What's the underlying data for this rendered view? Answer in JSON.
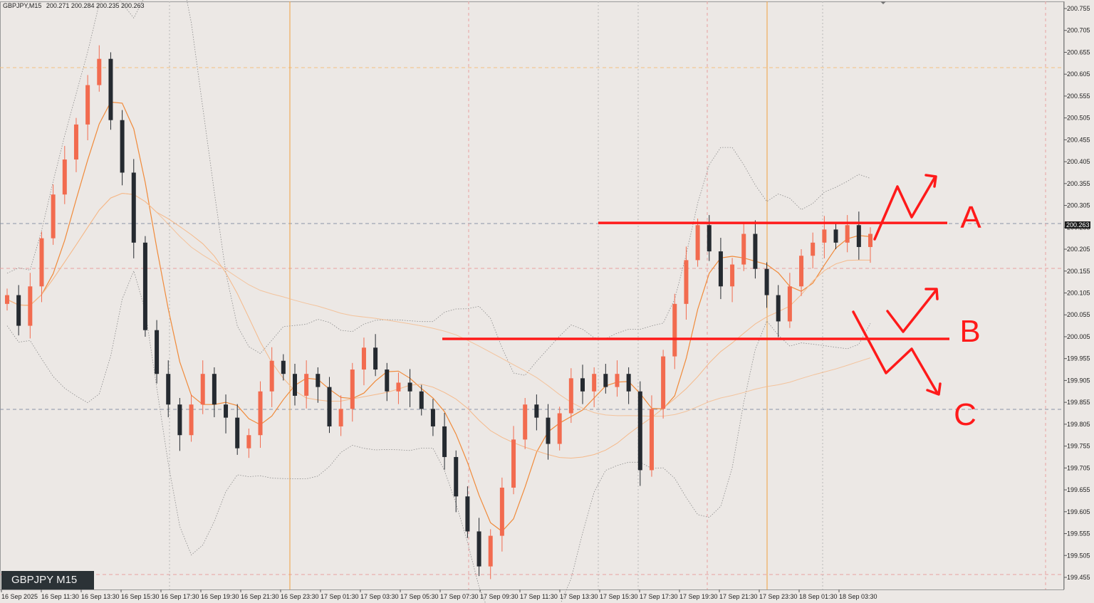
{
  "header": {
    "symbol_tf": "GBPJPY,M15",
    "ohlc": "200.271 200.284 200.235 200.263"
  },
  "symbol_box": "GBPJPY M15",
  "current_price_label": "200.263",
  "annotations": {
    "labels": [
      "A",
      "B",
      "C"
    ],
    "levels": [
      200.265,
      200.0
    ],
    "line_color": "#ff1a1a"
  },
  "colors": {
    "bull": "#f26b4f",
    "bear": "#252a30",
    "ma_fast": "#f08a3a",
    "ma_slow": "#f5b98a",
    "bb": "#8a8a8a",
    "annotation": "#ff1a1a",
    "session_line": "#f0a040"
  },
  "chart_data": {
    "type": "candlestick",
    "instrument": "GBPJPY",
    "timeframe": "M15",
    "ylim": [
      199.45,
      200.77
    ],
    "y_ticks": [
      "200.755",
      "200.705",
      "200.655",
      "200.605",
      "200.555",
      "200.505",
      "200.455",
      "200.405",
      "200.355",
      "200.305",
      "200.255",
      "200.205",
      "200.155",
      "200.105",
      "200.055",
      "200.005",
      "199.955",
      "199.905",
      "199.855",
      "199.805",
      "199.755",
      "199.705",
      "199.655",
      "199.605",
      "199.555",
      "199.505",
      "199.455"
    ],
    "x_ticks": [
      "16 Sep 2025",
      "16 Sep 11:30",
      "16 Sep 13:30",
      "16 Sep 15:30",
      "16 Sep 17:30",
      "16 Sep 19:30",
      "16 Sep 21:30",
      "16 Sep 23:30",
      "17 Sep 01:30",
      "17 Sep 03:30",
      "17 Sep 05:30",
      "17 Sep 07:30",
      "17 Sep 09:30",
      "17 Sep 11:30",
      "17 Sep 13:30",
      "17 Sep 15:30",
      "17 Sep 17:30",
      "17 Sep 19:30",
      "17 Sep 21:30",
      "17 Sep 23:30",
      "18 Sep 01:30",
      "18 Sep 03:30"
    ],
    "candles_path": [
      [
        200.1,
        -6
      ],
      [
        200.03,
        8
      ],
      [
        200.12,
        7
      ],
      [
        200.23,
        8
      ],
      [
        200.33,
        7
      ],
      [
        200.41,
        8
      ],
      [
        200.49,
        9
      ],
      [
        200.58,
        8
      ],
      [
        200.64,
        3
      ],
      [
        200.5,
        -9
      ],
      [
        200.38,
        -10
      ],
      [
        200.22,
        -12
      ],
      [
        200.02,
        -13
      ],
      [
        199.92,
        -6
      ],
      [
        199.85,
        -4
      ],
      [
        199.78,
        -4
      ],
      [
        199.85,
        4
      ],
      [
        199.92,
        4
      ],
      [
        199.85,
        -4
      ],
      [
        199.82,
        -3
      ],
      [
        199.75,
        -5
      ],
      [
        199.78,
        2
      ],
      [
        199.88,
        5
      ],
      [
        199.95,
        5
      ],
      [
        199.92,
        -2
      ],
      [
        199.87,
        -3
      ],
      [
        199.92,
        3
      ],
      [
        199.89,
        -2
      ],
      [
        199.8,
        -6
      ],
      [
        199.84,
        3
      ],
      [
        199.93,
        4
      ],
      [
        199.98,
        3
      ],
      [
        199.93,
        -3
      ],
      [
        199.88,
        -3
      ],
      [
        199.9,
        2
      ],
      [
        199.88,
        -2
      ],
      [
        199.84,
        -3
      ],
      [
        199.8,
        -3
      ],
      [
        199.73,
        -5
      ],
      [
        199.64,
        -7
      ],
      [
        199.56,
        -7
      ],
      [
        199.48,
        -8
      ],
      [
        199.55,
        5
      ],
      [
        199.66,
        7
      ],
      [
        199.77,
        7
      ],
      [
        199.85,
        6
      ],
      [
        199.82,
        -3
      ],
      [
        199.76,
        -4
      ],
      [
        199.83,
        5
      ],
      [
        199.91,
        6
      ],
      [
        199.88,
        -2
      ],
      [
        199.92,
        2
      ],
      [
        199.89,
        -2
      ],
      [
        199.92,
        2
      ],
      [
        199.88,
        -3
      ],
      [
        199.7,
        -10
      ],
      [
        199.84,
        9
      ],
      [
        199.96,
        8
      ],
      [
        200.08,
        8
      ],
      [
        200.18,
        7
      ],
      [
        200.26,
        7
      ],
      [
        200.2,
        -4
      ],
      [
        200.12,
        -6
      ],
      [
        200.17,
        3
      ],
      [
        200.24,
        4
      ],
      [
        200.16,
        -4
      ],
      [
        200.1,
        -6
      ],
      [
        200.04,
        -4
      ],
      [
        200.12,
        5
      ],
      [
        200.19,
        5
      ],
      [
        200.22,
        2
      ],
      [
        200.25,
        2
      ],
      [
        200.22,
        -2
      ],
      [
        200.26,
        2
      ],
      [
        200.21,
        -3
      ],
      [
        200.24,
        2
      ]
    ],
    "moving_averages": [
      "fast",
      "slow",
      "long"
    ],
    "bollinger_bands": true,
    "annotations": {
      "A": {
        "level": 200.265,
        "scenario": "breakout up"
      },
      "B": {
        "level": 200.0,
        "scenario": "pullback to support then up"
      },
      "C": {
        "level": 199.85,
        "scenario": "break below support down"
      }
    }
  }
}
